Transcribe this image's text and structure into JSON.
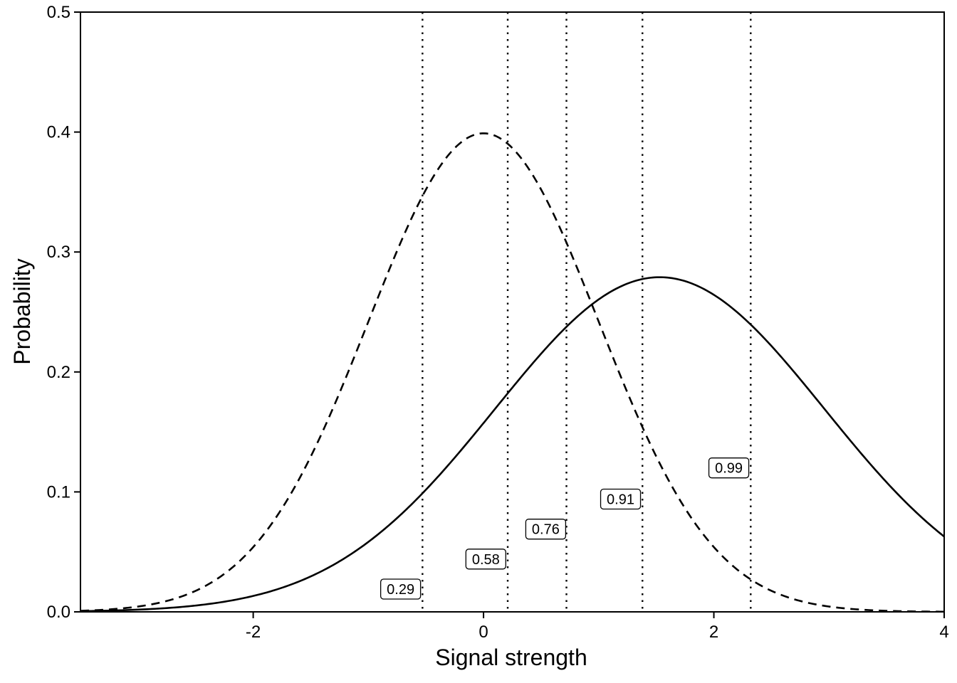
{
  "chart_data": {
    "type": "line",
    "title": "",
    "xlabel": "Signal strength",
    "ylabel": "Probability",
    "xlim": [
      -3.5,
      4
    ],
    "ylim": [
      0,
      0.5
    ],
    "x_ticks": [
      -2,
      0,
      2,
      4
    ],
    "x_tick_labels": [
      "-2",
      "0",
      "2",
      "4"
    ],
    "y_ticks": [
      0,
      0.1,
      0.2,
      0.3,
      0.4,
      0.5
    ],
    "y_tick_labels": [
      "0.0",
      "0.1",
      "0.2",
      "0.3",
      "0.4",
      "0.5"
    ],
    "grid": false,
    "legend": "none",
    "series": [
      {
        "style": "dashed",
        "color": "#000000",
        "distribution": "normal",
        "mean": 0,
        "sd": 1
      },
      {
        "style": "solid",
        "color": "#000000",
        "distribution": "normal",
        "mean": 1.53,
        "sd": 1.43
      }
    ],
    "criteria": [
      {
        "x": -0.53,
        "label": "0.29",
        "label_x": -0.72,
        "label_y": 0.019
      },
      {
        "x": 0.21,
        "label": "0.58",
        "label_x": 0.02,
        "label_y": 0.044
      },
      {
        "x": 0.72,
        "label": "0.76",
        "label_x": 0.54,
        "label_y": 0.069
      },
      {
        "x": 1.38,
        "label": "0.91",
        "label_x": 1.19,
        "label_y": 0.094
      },
      {
        "x": 2.32,
        "label": "0.99",
        "label_x": 2.13,
        "label_y": 0.12
      }
    ],
    "criterion_line_style": "dotted"
  }
}
